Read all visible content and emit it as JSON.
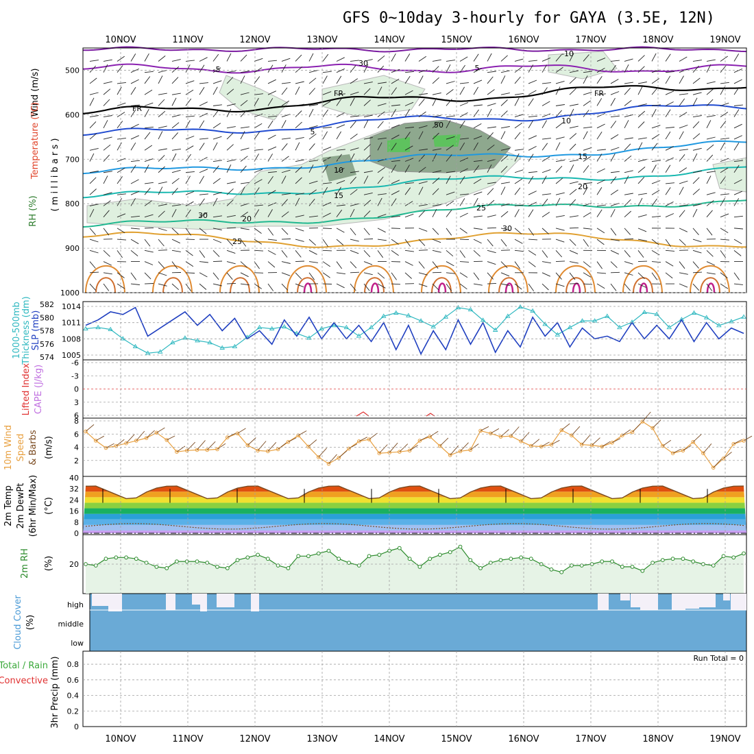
{
  "title": "GFS 0~10day 3-hourly for GAYA (3.5E, 12N)",
  "dates": [
    "10NOV",
    "11NOV",
    "12NOV",
    "13NOV",
    "14NOV",
    "15NOV",
    "16NOV",
    "17NOV",
    "18NOV",
    "19NOV"
  ],
  "run_total": "Run Total = 0",
  "colors": {
    "grid": "#a0a0a0",
    "rh_fill": "#dff0df",
    "cloud": "#6aaad6",
    "slp": "#1f3fc0",
    "thick": "#2fb8c0",
    "wind": "#e8a040",
    "temp_line": "#7a4a20",
    "rh_line": "#2a8a2a"
  },
  "panel_labels": {
    "upper": {
      "wind": "Wind (m/s)",
      "temp": "Temperature (°C)",
      "rh": "RH (%)",
      "millibars": "( m i l l i b a r s )"
    },
    "slp": {
      "thick_a": "1000-500mb",
      "thick_b": "Thickness (dm)",
      "slp": "SLP (mb)"
    },
    "cape": {
      "li": "Lifted Index",
      "cape": "CAPE (J/kg)"
    },
    "wind10": {
      "a": "10m Wind",
      "b": "Speed",
      "c": "& Barbs",
      "d": "(m/s)"
    },
    "temp2m": {
      "a": "2m Temp",
      "b": "2m DewPt",
      "c": "(6hr Min/Max)",
      "d": "(°C)"
    },
    "rh2m": {
      "a": "2m RH",
      "b": "(%)"
    },
    "cloud": {
      "a": "Cloud Cover",
      "b": "(%)",
      "high": "high",
      "middle": "middle",
      "low": "low"
    },
    "precip": {
      "a": "Total / Rain",
      "b": "Convective",
      "c": "3hr Precip (mm)"
    }
  },
  "chart_data": [
    {
      "type": "contour",
      "panel": "upper-air cross-section",
      "ylabel": "millibars",
      "y_ticks": [
        "500",
        "600",
        "700",
        "800",
        "900",
        "1000"
      ],
      "contour_labels": [
        "-10",
        "-5",
        "5",
        "FR",
        "FR",
        "FR",
        "5",
        "10",
        "10",
        "15",
        "15",
        "20",
        "20",
        "25",
        "25",
        "30",
        "30",
        "30",
        "50"
      ]
    },
    {
      "type": "line",
      "panel": "SLP / Thickness",
      "left_ticks": [
        "582",
        "580",
        "578",
        "576",
        "574"
      ],
      "right_ticks": [
        "1014",
        "1011",
        "1008",
        "1005"
      ],
      "series": [
        {
          "name": "SLP (mb)",
          "values": [
            1010.5,
            1011.5,
            1013,
            1012.5,
            1013.8,
            1008.5,
            1010,
            1011.5,
            1013,
            1010.5,
            1012.5,
            1009.5,
            1011.8,
            1008,
            1009.5,
            1007,
            1011.5,
            1008.5,
            1012,
            1008,
            1011,
            1008,
            1010.5,
            1007.5,
            1011,
            1006,
            1010.5,
            1005.2,
            1009.5,
            1006,
            1011.5,
            1007,
            1011,
            1005.5,
            1009.5,
            1006.5,
            1012,
            1008.5,
            1011,
            1006.5,
            1010,
            1008,
            1008.5,
            1007.5,
            1011,
            1008,
            1010.5,
            1008,
            1011.5,
            1007.5,
            1011,
            1008,
            1010,
            1009
          ]
        },
        {
          "name": "Thickness (dm)",
          "values": [
            578.3,
            578.5,
            578.2,
            576.8,
            575.6,
            574.6,
            574.8,
            576.2,
            576.9,
            576.5,
            576.2,
            575.4,
            575.6,
            577,
            578.5,
            578.3,
            578.6,
            577.6,
            576.9,
            578.3,
            578.8,
            578.5,
            577.2,
            578.5,
            580.2,
            580.7,
            580.3,
            579.5,
            578.6,
            580.1,
            581.5,
            581.2,
            579.6,
            578.1,
            580.2,
            581.6,
            581,
            579,
            577.4,
            578.5,
            579.5,
            579.5,
            580.2,
            578.5,
            579.3,
            580.8,
            580.5,
            578.5,
            579.7,
            580.7,
            580,
            578.8,
            579.4,
            580.1
          ]
        }
      ]
    },
    {
      "type": "line",
      "panel": "Lifted Index / CAPE",
      "y_ticks": [
        "-6",
        "-3",
        "0",
        "3",
        "6"
      ]
    },
    {
      "type": "line",
      "panel": "10m Wind Speed",
      "y_ticks": [
        "8",
        "6",
        "4",
        "2"
      ],
      "series": [
        {
          "name": "Speed",
          "values": [
            6.4,
            5,
            3.9,
            4.2,
            4.6,
            5,
            5.4,
            6.2,
            5.1,
            3.3,
            3.5,
            3.6,
            3.6,
            3.7,
            5.5,
            6.1,
            4.3,
            3.5,
            3.4,
            3.7,
            4.8,
            5.8,
            4.1,
            2.5,
            1.5,
            2.4,
            3.8,
            4.9,
            5.2,
            3.1,
            3.2,
            3.3,
            3.5,
            5,
            5.6,
            4.2,
            2.8,
            3.4,
            3.6,
            6.5,
            6.1,
            5.6,
            5.7,
            4.9,
            4.2,
            4.1,
            4.4,
            6.6,
            5.8,
            4.4,
            4.3,
            4.1,
            4.7,
            5.8,
            6.3,
            7.9,
            6.9,
            4.2,
            3.1,
            3.5,
            4.8,
            3.1,
            0.9,
            2.3,
            4.5,
            5
          ]
        }
      ]
    },
    {
      "type": "area",
      "panel": "2m Temp / DewPt",
      "y_ticks": [
        "40",
        "32",
        "24",
        "16",
        "8",
        "0"
      ]
    },
    {
      "type": "area",
      "panel": "2m RH",
      "y_ticks": [
        "20"
      ],
      "series": [
        {
          "name": "2m RH",
          "values": [
            20,
            19,
            24,
            25,
            25,
            24,
            21,
            18,
            17,
            22,
            22,
            22,
            21,
            18,
            17,
            23,
            25,
            27,
            24,
            19,
            17,
            26,
            26,
            28,
            30,
            24,
            21,
            19,
            26,
            27,
            30,
            32,
            24,
            18,
            24,
            27,
            29,
            33,
            23,
            17,
            21,
            23,
            24,
            25,
            24,
            20,
            16,
            14,
            19,
            19,
            20,
            22,
            22,
            18,
            18,
            15,
            21,
            23,
            24,
            24,
            22,
            20,
            19,
            26,
            25,
            28
          ]
        }
      ]
    },
    {
      "type": "bar",
      "panel": "Cloud Cover",
      "categories": [
        "high",
        "middle",
        "low"
      ]
    },
    {
      "type": "bar",
      "panel": "3hr Precip",
      "y_ticks": [
        "0.8",
        "0.6",
        "0.4",
        "0.2",
        "0"
      ],
      "ylim": [
        0,
        1
      ],
      "values": [
        0
      ]
    }
  ]
}
